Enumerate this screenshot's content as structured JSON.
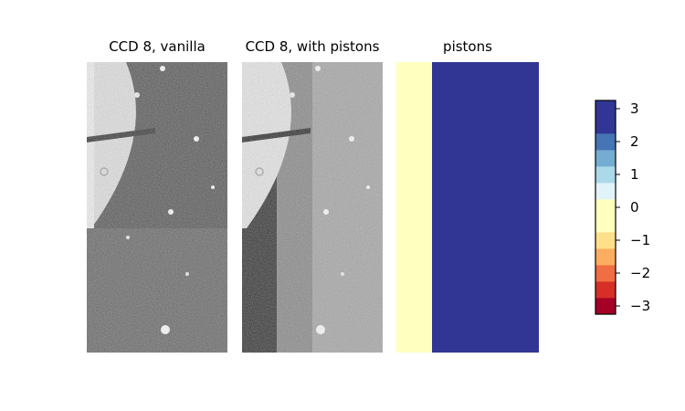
{
  "chart_data": [
    {
      "type": "image",
      "title": "CCD 8, vanilla",
      "description_values": {
        "image_kind": "grayscale-ccd-frame"
      }
    },
    {
      "type": "image",
      "title": "CCD 8, with pistons",
      "description_values": {
        "image_kind": "grayscale-ccd-frame"
      }
    },
    {
      "type": "heatmap",
      "title": "pistons",
      "columns": [
        {
          "value": 0
        },
        {
          "value": 3
        }
      ],
      "colorbar": {
        "bin_edges": [
          -3.25,
          -2.75,
          -2.25,
          -1.75,
          -1.25,
          -0.75,
          -0.25,
          0.25,
          0.75,
          1.25,
          1.75,
          2.25,
          2.75,
          3.25
        ],
        "bin_colors": [
          "#a50026",
          "#d62f27",
          "#f16d43",
          "#fcad60",
          "#fee08b",
          "#ffffbf",
          "#ffffbf",
          "#e0f3f8",
          "#abd9e9",
          "#74add1",
          "#4575b4",
          "#313695",
          "#313695"
        ],
        "ticks": [
          -3,
          -2,
          -1,
          0,
          1,
          2,
          3
        ],
        "tick_labels": [
          "−3",
          "−2",
          "−1",
          "0",
          "1",
          "2",
          "3"
        ],
        "range": [
          -3.25,
          3.25
        ]
      }
    }
  ]
}
